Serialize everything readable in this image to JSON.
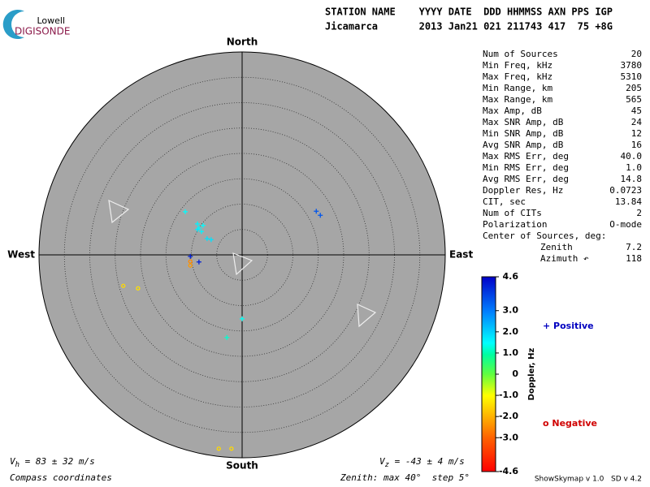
{
  "logo": {
    "top": "Lowell",
    "bottom": "DIGISONDE"
  },
  "header": {
    "labels": "STATION NAME    YYYY DATE  DDD HHMMSS AXN PPS IGP",
    "values": "Jicamarca       2013 Jan21 021 211743 417  75 +8G"
  },
  "compass": {
    "north": "North",
    "south": "South",
    "east": "East",
    "west": "West"
  },
  "stats": [
    [
      "Num of Sources",
      "20"
    ],
    [
      "Min Freq, kHz",
      "3780"
    ],
    [
      "Max Freq, kHz",
      "5310"
    ],
    [
      "Min Range, km",
      "205"
    ],
    [
      "Max Range, km",
      "565"
    ],
    [
      "Max Amp, dB",
      "45"
    ],
    [
      "Max SNR Amp, dB",
      "24"
    ],
    [
      "Min SNR Amp, dB",
      "12"
    ],
    [
      "Avg SNR Amp, dB",
      "16"
    ],
    [
      "Max RMS Err, deg",
      "40.0"
    ],
    [
      "Min RMS Err, deg",
      "1.0"
    ],
    [
      "Avg RMS Err, deg",
      "14.8"
    ],
    [
      "Doppler Res, Hz",
      "0.0723"
    ],
    [
      "CIT, sec",
      "13.84"
    ],
    [
      "Num of CITs",
      "2"
    ],
    [
      "Polarization",
      "O-mode"
    ]
  ],
  "center": {
    "title": "Center of Sources, deg:",
    "rows": [
      [
        "Zenith",
        "7.2"
      ],
      [
        "Azimuth ↶",
        "118"
      ]
    ]
  },
  "colorbar": {
    "label": "Doppler, Hz",
    "range": [
      -4.6,
      4.6
    ],
    "ticks": [
      4.6,
      {
        "value": 3,
        "label": "3.0"
      },
      {
        "value": 2,
        "label": "2.0"
      },
      {
        "value": 1,
        "label": "1.0"
      },
      0,
      {
        "value": -1,
        "label": "-1.0"
      },
      {
        "value": -2,
        "label": "-2.0"
      },
      {
        "value": -3,
        "label": "-3.0"
      },
      -4.6
    ]
  },
  "legend": {
    "positive": "+ Positive",
    "negative": "o Negative"
  },
  "footer": {
    "vh": [
      "V",
      "h",
      " = 83 ± 32 m/s"
    ],
    "vz": [
      "V",
      "z",
      " = -43 ± 4 m/s"
    ],
    "coords": "Compass coordinates",
    "zenith": "Zenith: max 40°  step 5°",
    "version": "ShowSkymap v 1.0   SD v 4.2"
  },
  "sources": [
    {
      "east": 14.6,
      "north": 8.6,
      "doppler": 3.5
    },
    {
      "east": 15.4,
      "north": 7.8,
      "doppler": 3.5
    },
    {
      "east": -11.2,
      "north": 8.5,
      "doppler": 1.5
    },
    {
      "east": -8.8,
      "north": 6.1,
      "doppler": 1.6
    },
    {
      "east": -7.7,
      "north": 5.8,
      "doppler": 1.5
    },
    {
      "east": -8.8,
      "north": 5.0,
      "doppler": 1.7
    },
    {
      "east": -8.0,
      "north": 4.6,
      "doppler": 1.6
    },
    {
      "east": -6.9,
      "north": 3.2,
      "doppler": 1.8
    },
    {
      "east": -6.1,
      "north": 3.0,
      "doppler": 1.8
    },
    {
      "east": -8.5,
      "north": 5.3,
      "doppler": 1.6
    },
    {
      "east": -10.2,
      "north": -0.3,
      "doppler": 4.2
    },
    {
      "east": -8.5,
      "north": -1.4,
      "doppler": 4.2
    },
    {
      "east": -10.2,
      "north": -1.3,
      "doppler": -2.5
    },
    {
      "east": -10.2,
      "north": -2.1,
      "doppler": -2.3
    },
    {
      "east": -23.4,
      "north": -6.1,
      "doppler": -1.5
    },
    {
      "east": -20.5,
      "north": -6.6,
      "doppler": -1.4
    },
    {
      "east": 0.0,
      "north": -12.6,
      "doppler": 1.4
    },
    {
      "east": -3.0,
      "north": -16.3,
      "doppler": 1.2
    },
    {
      "east": -4.6,
      "north": -38.2,
      "doppler": -1.5
    },
    {
      "east": -2.1,
      "north": -38.2,
      "doppler": -1.5
    }
  ]
}
